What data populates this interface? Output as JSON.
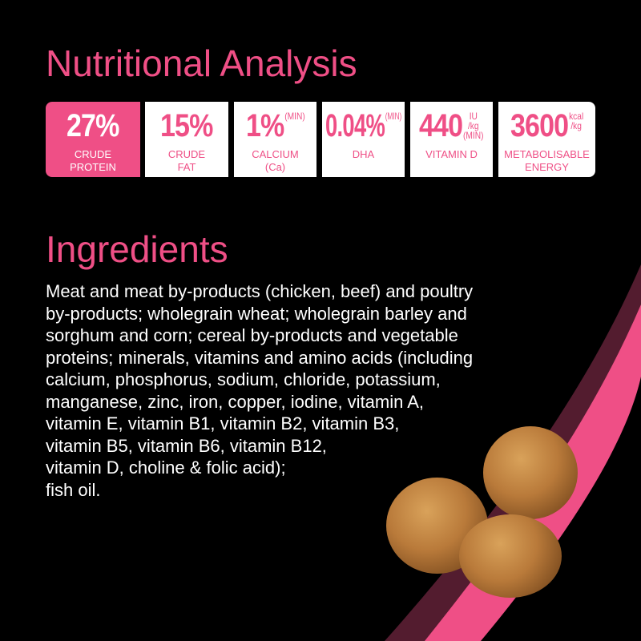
{
  "nutritional_analysis": {
    "title": "Nutritional Analysis",
    "items": [
      {
        "value": "27%",
        "unit": "",
        "label": [
          "CRUDE",
          "PROTEIN"
        ]
      },
      {
        "value": "15%",
        "unit": "",
        "label": [
          "CRUDE",
          "FAT"
        ]
      },
      {
        "value": "1%",
        "unit": "(MIN)",
        "label": [
          "CALCIUM",
          "(Ca)"
        ]
      },
      {
        "value": "0.04%",
        "unit": "(MIN)",
        "label": [
          "DHA",
          ""
        ]
      },
      {
        "value": "440",
        "unit": "IU /kg (MIN)",
        "unit_lines": [
          "IU",
          "/kg",
          "(MIN)"
        ],
        "label": [
          "VITAMIN D",
          ""
        ]
      },
      {
        "value": "3600",
        "unit": "kcal /kg",
        "unit_lines": [
          "kcal",
          "/kg"
        ],
        "label": [
          "METABOLISABLE",
          "ENERGY"
        ]
      }
    ]
  },
  "ingredients": {
    "title": "Ingredients",
    "lines": [
      "Meat and meat by-products (chicken, beef) and poultry",
      "by-products; wholegrain wheat; wholegrain barley and",
      "sorghum and corn; cereal by-products and vegetable",
      "proteins; minerals, vitamins and amino acids (including",
      "calcium, phosphorus, sodium, chloride, potassium,",
      "manganese, zinc, iron, copper, iodine, vitamin A,",
      "vitamin E, vitamin B1, vitamin B2, vitamin B3,",
      "vitamin B5, vitamin B6, vitamin B12,",
      "vitamin D, choline & folic acid);",
      "fish oil."
    ]
  },
  "colors": {
    "accent": "#ef4f86",
    "background": "#000000",
    "text": "#ffffff"
  }
}
